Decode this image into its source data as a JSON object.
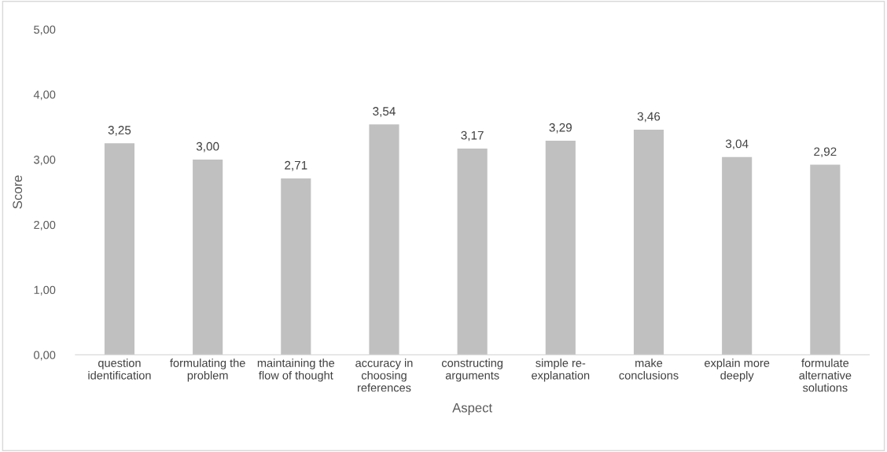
{
  "chart_data": {
    "type": "bar",
    "xlabel": "Aspect",
    "ylabel": "Score",
    "categories": [
      "question\nidentification",
      "formulating the\nproblem",
      "maintaining the\nflow of thought",
      "accuracy in\nchoosing\nreferences",
      "constructing\narguments",
      "simple re-\nexplanation",
      "make\nconclusions",
      "explain more\ndeeply",
      "formulate\nalternative\nsolutions"
    ],
    "values": [
      3.25,
      3.0,
      2.71,
      3.54,
      3.17,
      3.29,
      3.46,
      3.04,
      2.92
    ],
    "value_labels": [
      "3,25",
      "3,00",
      "2,71",
      "3,54",
      "3,17",
      "3,29",
      "3,46",
      "3,04",
      "2,92"
    ],
    "color": "#c0c0c0",
    "ylim": [
      0,
      5
    ],
    "yticks": [
      {
        "value": 0,
        "label": "0,00"
      },
      {
        "value": 1,
        "label": "1,00"
      },
      {
        "value": 2,
        "label": "2,00"
      },
      {
        "value": 3,
        "label": "3,00"
      },
      {
        "value": 4,
        "label": "4,00"
      },
      {
        "value": 5,
        "label": "5,00"
      }
    ],
    "grid": false,
    "legend": false
  }
}
